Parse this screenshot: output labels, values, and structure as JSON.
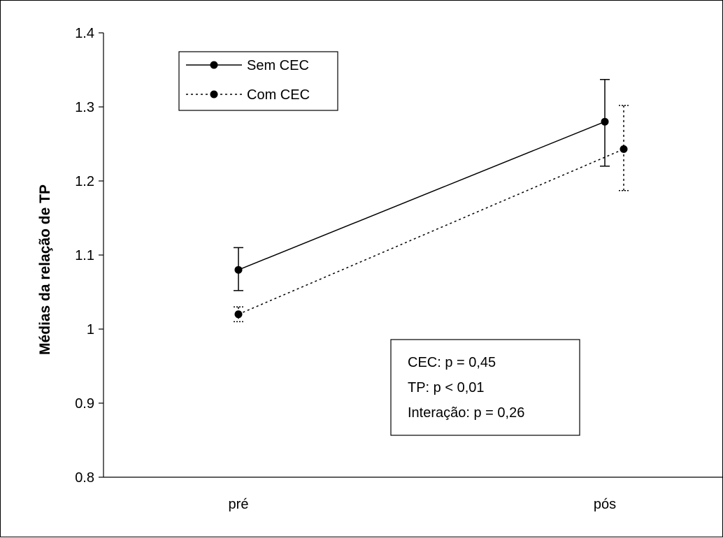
{
  "chart_data": {
    "type": "line",
    "title": "",
    "xlabel": "",
    "ylabel": "Médias da relação de TP",
    "categories": [
      "pré",
      "pós"
    ],
    "ylim": [
      0.8,
      1.4
    ],
    "yticks": [
      "0.8",
      "0.9",
      "1",
      "1.1",
      "1.2",
      "1.3",
      "1.4"
    ],
    "ytick_values": [
      0.8,
      0.9,
      1.0,
      1.1,
      1.2,
      1.3,
      1.4
    ],
    "grid": false,
    "legend_position": "top-left",
    "series": [
      {
        "name": "Sem CEC",
        "values": [
          1.08,
          1.28
        ],
        "error_low": [
          1.052,
          1.22
        ],
        "error_high": [
          1.11,
          1.337
        ],
        "line_style": "solid",
        "color": "#000000"
      },
      {
        "name": "Com CEC",
        "values": [
          1.02,
          1.243
        ],
        "error_low": [
          1.01,
          1.187
        ],
        "error_high": [
          1.03,
          1.302
        ],
        "line_style": "dotted",
        "color": "#000000"
      }
    ],
    "annotation": {
      "lines": [
        "CEC: p = 0,45",
        "TP: p < 0,01",
        "Interação: p = 0,26"
      ]
    }
  }
}
